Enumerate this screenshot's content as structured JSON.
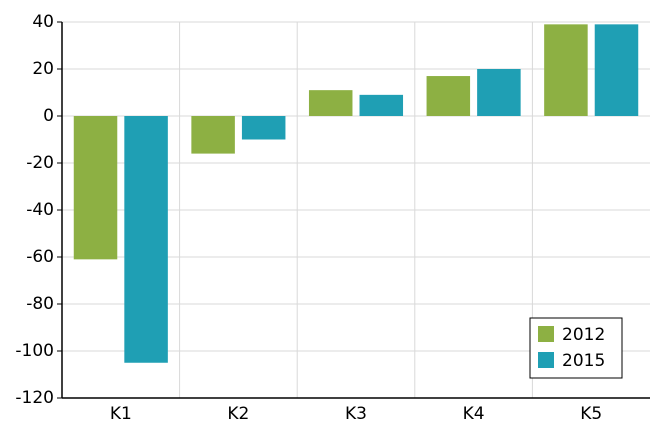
{
  "chart_data": {
    "type": "bar",
    "categories": [
      "K1",
      "K2",
      "K3",
      "K4",
      "K5"
    ],
    "series": [
      {
        "name": "2012",
        "color": "#8db043",
        "values": [
          -61,
          -16,
          11,
          17,
          39
        ]
      },
      {
        "name": "2015",
        "color": "#1f9fb4",
        "values": [
          -105,
          -10,
          9,
          20,
          39
        ]
      }
    ],
    "ylim": [
      -120,
      40
    ],
    "yticks": [
      -120,
      -100,
      -80,
      -60,
      -40,
      -20,
      0,
      20,
      40
    ],
    "grid": true,
    "legend": "lower right"
  }
}
